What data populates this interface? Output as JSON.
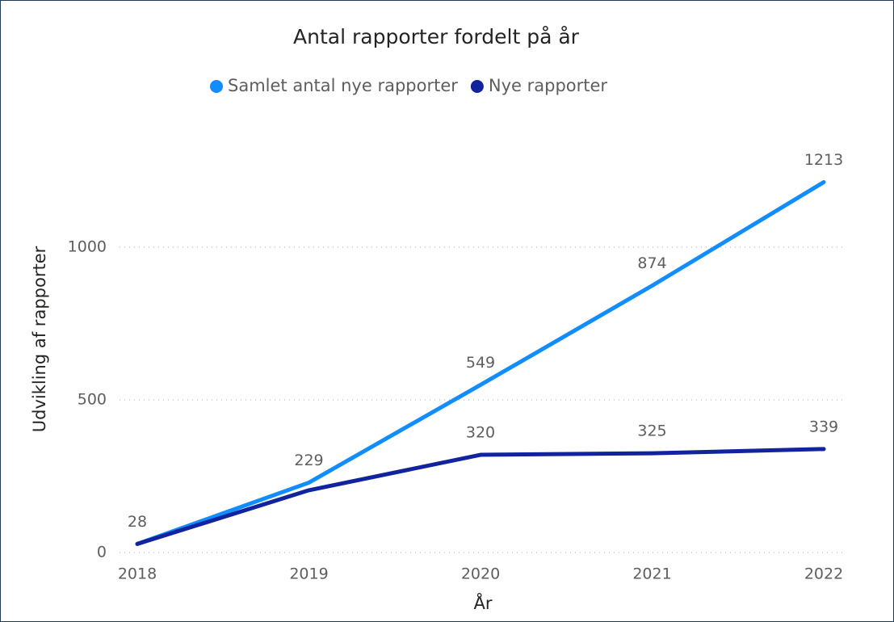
{
  "chart_data": {
    "type": "line",
    "title": "Antal rapporter fordelt på år",
    "x_label": "År",
    "y_label": "Udvikling af rapporter",
    "categories": [
      "2018",
      "2019",
      "2020",
      "2021",
      "2022"
    ],
    "series": [
      {
        "name": "Samlet antal nye rapporter",
        "color": "#118dff",
        "values": [
          28,
          229,
          549,
          874,
          1213
        ],
        "labels": [
          true,
          true,
          true,
          true,
          true
        ]
      },
      {
        "name": "Nye rapporter",
        "color": "#12239e",
        "values": [
          28,
          204,
          320,
          325,
          339
        ],
        "labels": [
          false,
          false,
          true,
          true,
          true
        ]
      }
    ],
    "ylim": [
      0,
      1300
    ],
    "yticks": [
      0,
      500,
      1000
    ],
    "grid": true,
    "legend": "top"
  }
}
